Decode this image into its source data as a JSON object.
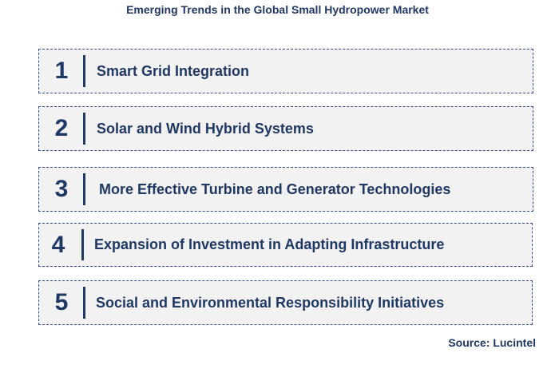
{
  "title": "Emerging Trends in the Global Small Hydropower Market",
  "trends": [
    {
      "number": "1",
      "label": "Smart Grid Integration"
    },
    {
      "number": "2",
      "label": "Solar and Wind Hybrid Systems"
    },
    {
      "number": "3",
      "label": "More Effective Turbine and Generator Technologies"
    },
    {
      "number": "4",
      "label": "Expansion of Investment in Adapting Infrastructure"
    },
    {
      "number": "5",
      "label": "Social and Environmental Responsibility Initiatives"
    }
  ],
  "source": "Source: Lucintel"
}
